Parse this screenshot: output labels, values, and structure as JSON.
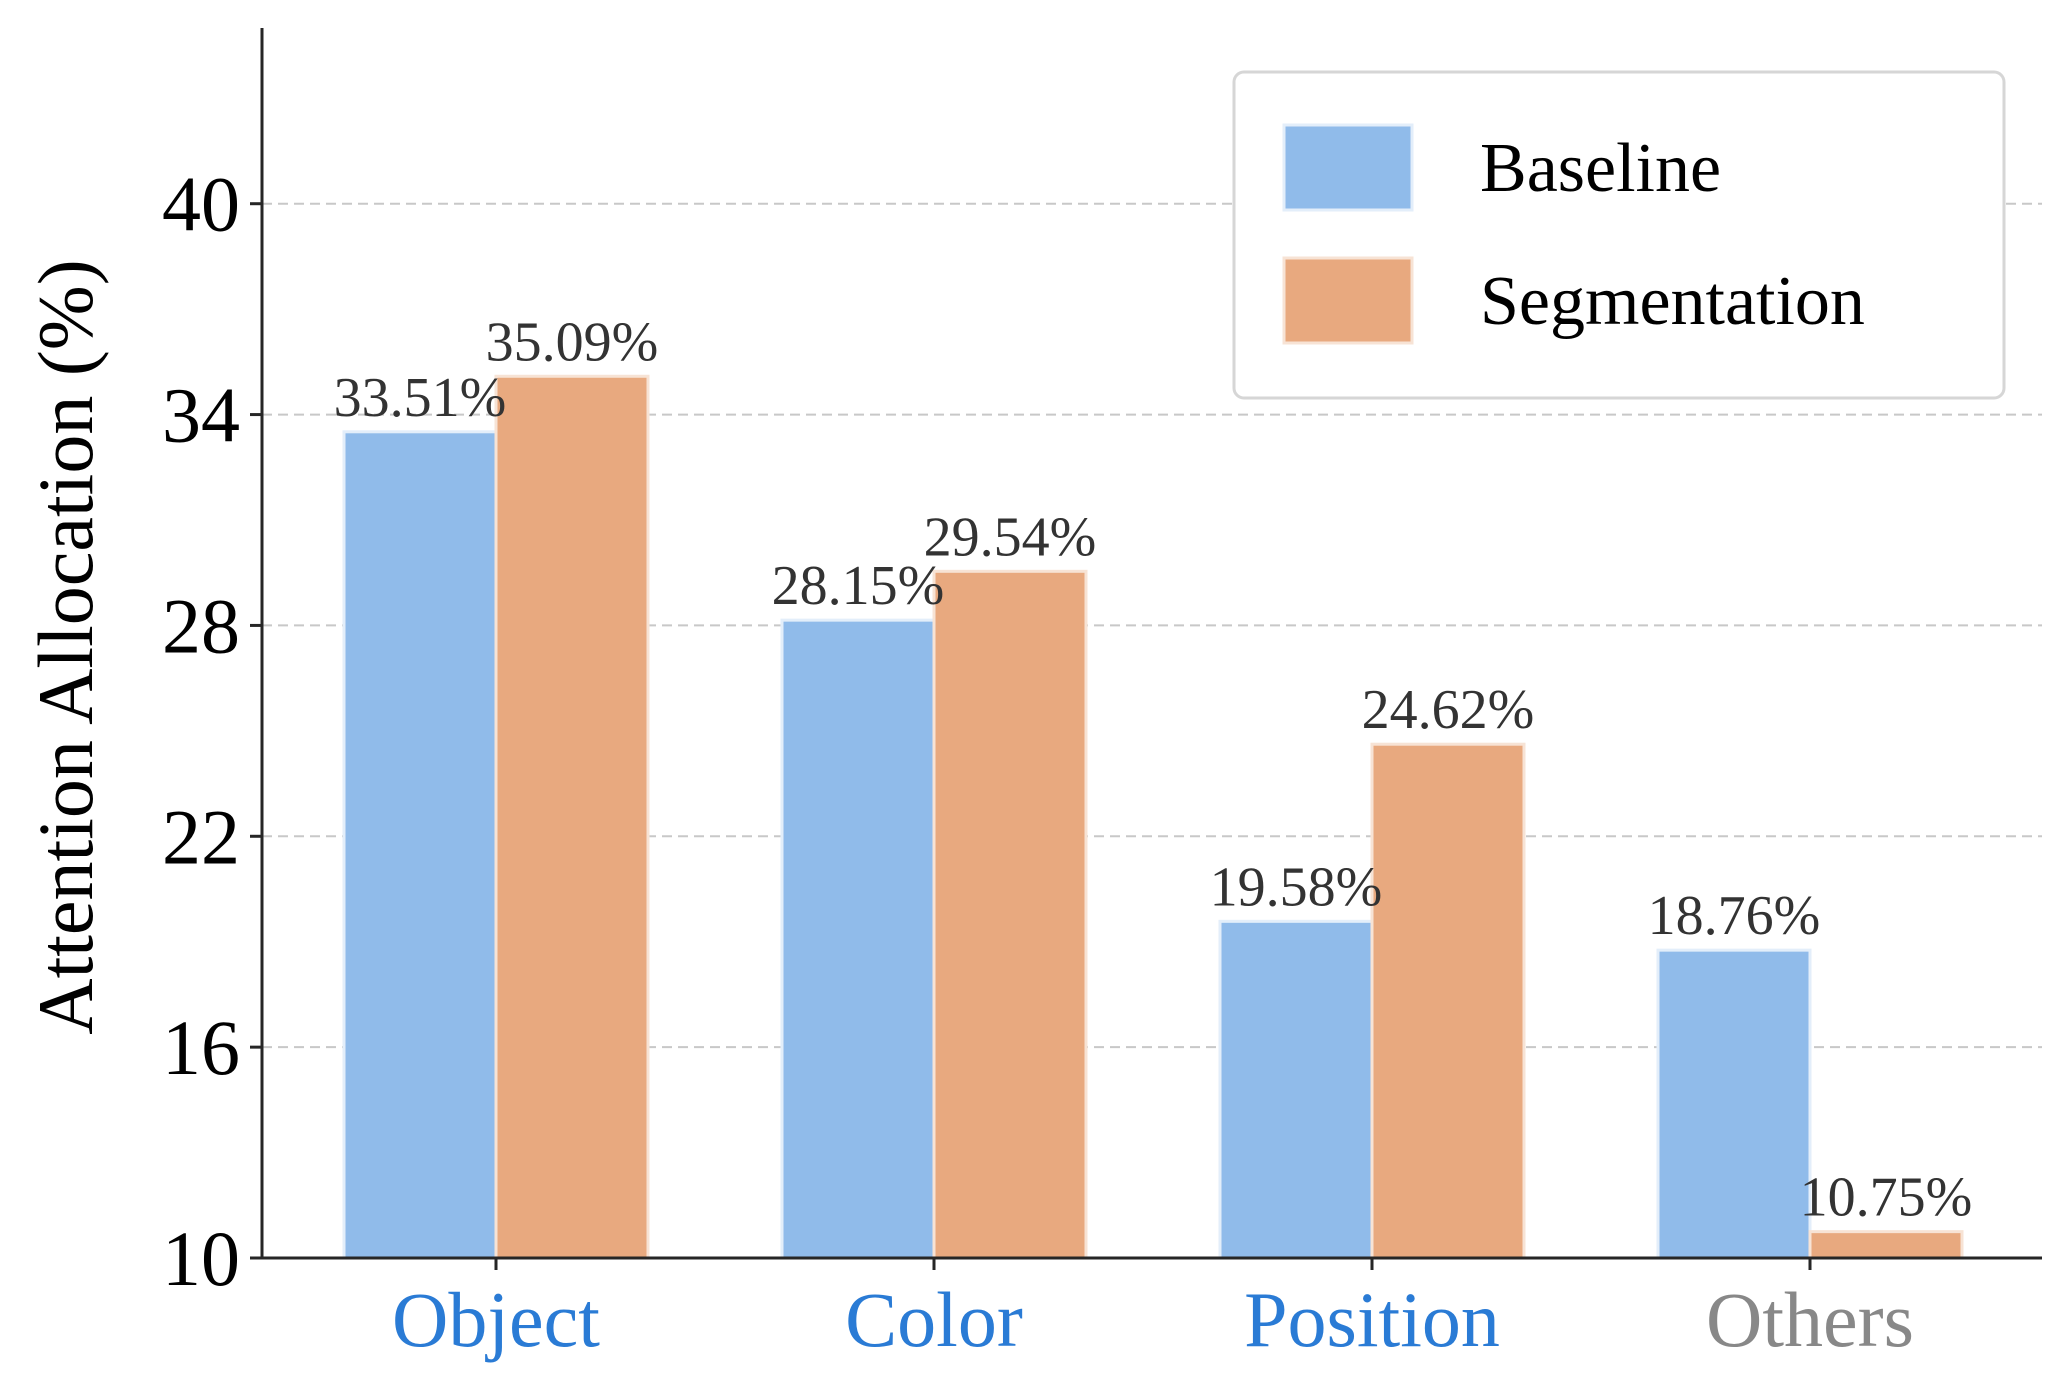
{
  "chart_data": {
    "type": "bar",
    "ylabel": "Attention Allocation (%)",
    "xlabel": "",
    "categories": [
      "Object",
      "Color",
      "Position",
      "Others"
    ],
    "category_colors": [
      "#2a7bd5",
      "#2a7bd5",
      "#2a7bd5",
      "#888888"
    ],
    "yticks": [
      10,
      16,
      22,
      28,
      34,
      40
    ],
    "ylim": [
      10,
      45
    ],
    "grid": "horizontal dashed",
    "legend_position": "top-right",
    "series": [
      {
        "name": "Baseline",
        "color": "#90bbea",
        "edge_color": "#e3eefa",
        "values": [
          33.51,
          28.15,
          19.58,
          18.76
        ],
        "labels": [
          "33.51%",
          "28.15%",
          "19.58%",
          "18.76%"
        ]
      },
      {
        "name": "Segmentation",
        "color": "#e8a97f",
        "edge_color": "#f7e3d5",
        "values": [
          35.09,
          29.54,
          24.62,
          10.75
        ],
        "labels": [
          "35.09%",
          "29.54%",
          "24.62%",
          "10.75%"
        ]
      }
    ]
  }
}
